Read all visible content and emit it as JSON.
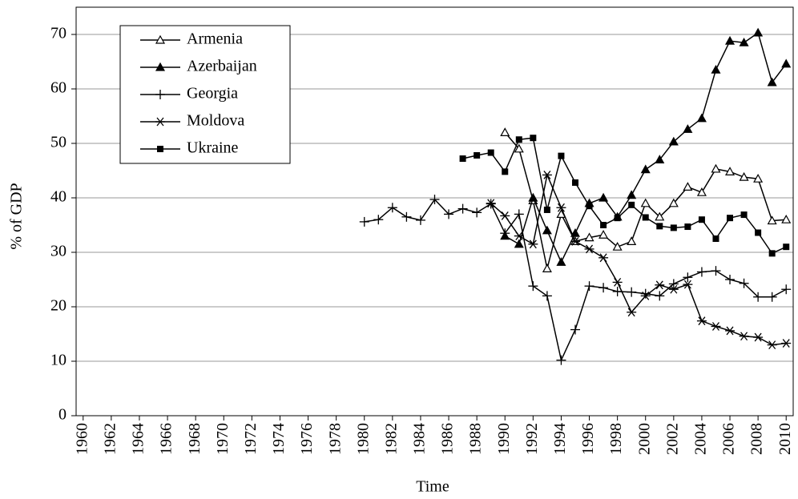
{
  "chart_data": {
    "type": "line",
    "y_label": "% of GDP",
    "x_label": "Time",
    "x": [
      1960,
      1961,
      1962,
      1963,
      1964,
      1965,
      1966,
      1967,
      1968,
      1969,
      1970,
      1971,
      1972,
      1973,
      1974,
      1975,
      1976,
      1977,
      1978,
      1979,
      1980,
      1981,
      1982,
      1983,
      1984,
      1985,
      1986,
      1987,
      1988,
      1989,
      1990,
      1991,
      1992,
      1993,
      1994,
      1995,
      1996,
      1997,
      1998,
      1999,
      2000,
      2001,
      2002,
      2003,
      2004,
      2005,
      2006,
      2007,
      2008,
      2009,
      2010
    ],
    "xlim": [
      1959.5,
      2010.5
    ],
    "xticks": [
      1960,
      1962,
      1964,
      1966,
      1968,
      1970,
      1972,
      1974,
      1976,
      1978,
      1980,
      1982,
      1984,
      1986,
      1988,
      1990,
      1992,
      1994,
      1996,
      1998,
      2000,
      2002,
      2004,
      2006,
      2008,
      2010
    ],
    "ylim": [
      0,
      75
    ],
    "yticks": [
      0,
      10,
      20,
      30,
      40,
      50,
      60,
      70
    ],
    "grid": true,
    "legend": "upper-left",
    "series": [
      {
        "name": "Armenia",
        "color": "#000000",
        "marker": "open-triangle",
        "values": [
          null,
          null,
          null,
          null,
          null,
          null,
          null,
          null,
          null,
          null,
          null,
          null,
          null,
          null,
          null,
          null,
          null,
          null,
          null,
          null,
          null,
          null,
          null,
          null,
          null,
          null,
          null,
          null,
          null,
          null,
          52,
          49,
          39.5,
          27,
          37,
          32,
          32.7,
          33.2,
          31,
          32,
          39,
          36.5,
          39,
          42,
          41,
          45.3,
          44.8,
          43.8,
          43.5,
          35.8,
          36
        ]
      },
      {
        "name": "Azerbaijan",
        "color": "#000000",
        "marker": "triangle",
        "values": [
          null,
          null,
          null,
          null,
          null,
          null,
          null,
          null,
          null,
          null,
          null,
          null,
          null,
          null,
          null,
          null,
          null,
          null,
          null,
          null,
          null,
          null,
          null,
          null,
          null,
          null,
          null,
          null,
          null,
          null,
          33,
          31.5,
          40,
          34,
          28.2,
          33.5,
          39,
          40,
          36.5,
          40.5,
          45.2,
          47,
          50.3,
          52.6,
          54.6,
          63.5,
          68.8,
          68.5,
          70.3,
          61.2,
          64.6
        ]
      },
      {
        "name": "Georgia",
        "color": "#000000",
        "marker": "plus",
        "values": [
          null,
          null,
          null,
          null,
          null,
          null,
          null,
          null,
          null,
          null,
          null,
          null,
          null,
          null,
          null,
          null,
          null,
          null,
          null,
          null,
          35.6,
          36,
          38.2,
          36.5,
          35.9,
          39.7,
          37,
          38,
          37.3,
          38.9,
          33.5,
          37,
          23.8,
          22,
          10.2,
          15.8,
          23.8,
          23.5,
          22.8,
          22.7,
          22.4,
          22,
          24.2,
          25.4,
          26.4,
          26.6,
          25,
          24.3,
          21.8,
          21.8,
          23.2
        ]
      },
      {
        "name": "Moldova",
        "color": "#000000",
        "marker": "asterisk",
        "values": [
          null,
          null,
          null,
          null,
          null,
          null,
          null,
          null,
          null,
          null,
          null,
          null,
          null,
          null,
          null,
          null,
          null,
          null,
          null,
          null,
          null,
          null,
          null,
          null,
          null,
          null,
          null,
          null,
          null,
          39,
          36.7,
          33,
          31.5,
          44.2,
          38.2,
          32,
          30.6,
          29,
          24.5,
          19,
          22,
          24,
          23.2,
          24.1,
          17.4,
          16.4,
          15.6,
          14.6,
          14.4,
          13,
          13.3
        ]
      },
      {
        "name": "Ukraine",
        "color": "#000000",
        "marker": "square",
        "values": [
          null,
          null,
          null,
          null,
          null,
          null,
          null,
          null,
          null,
          null,
          null,
          null,
          null,
          null,
          null,
          null,
          null,
          null,
          null,
          null,
          null,
          null,
          null,
          null,
          null,
          null,
          null,
          47.2,
          47.8,
          48.3,
          44.8,
          50.7,
          51,
          37.8,
          47.7,
          42.8,
          38.5,
          35,
          36.3,
          38.7,
          36.4,
          34.8,
          34.5,
          34.7,
          36,
          32.5,
          36.3,
          36.9,
          33.6,
          29.8,
          31
        ]
      }
    ]
  }
}
